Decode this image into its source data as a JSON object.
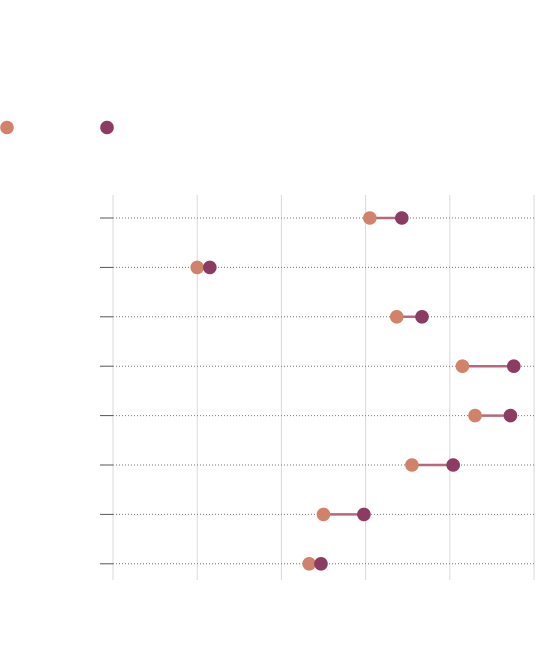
{
  "chart_data": {
    "type": "dumbbell",
    "title": "",
    "xlabel": "",
    "ylabel": "",
    "legend": {
      "placement": "top-left",
      "entries": [
        {
          "series_index": 0,
          "label": ""
        },
        {
          "series_index": 1,
          "label": ""
        }
      ]
    },
    "categories": [
      "",
      "",
      "",
      "",
      "",
      "",
      "",
      ""
    ],
    "xlim": [
      0,
      5
    ],
    "x_gridlines": [
      0,
      1,
      2,
      3,
      4,
      5
    ],
    "grid": {
      "vertical": true,
      "horizontal": "dotted"
    },
    "series": [
      {
        "color": "#d0826a",
        "values": [
          3.05,
          1.0,
          3.37,
          4.15,
          4.3,
          3.55,
          2.5,
          2.33
        ]
      },
      {
        "color": "#8c3b62",
        "values": [
          3.43,
          1.15,
          3.67,
          4.76,
          4.72,
          4.04,
          2.98,
          2.47
        ]
      }
    ],
    "connector_color": "#b8677c",
    "gridline_color": "#d9d9d9",
    "row_line_color": "#777777"
  }
}
